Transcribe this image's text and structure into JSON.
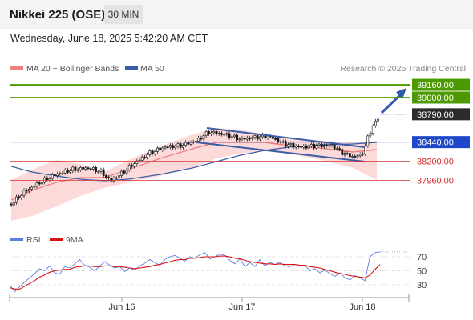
{
  "header": {
    "title": "Nikkei 225 (OSE)",
    "interval": "30 MIN",
    "datetime": "Wednesday, June 18, 2025 5:42:20 AM CET"
  },
  "legend": {
    "ma20": "MA 20 + Bollinger Bands",
    "ma50": "MA 50",
    "credit": "Research © 2025 Trading Central",
    "rsi": "RSI",
    "rsi_ma": "9MA"
  },
  "colors": {
    "ma20": "#f08080",
    "ma50": "#3a5da8",
    "band": "#fcd4d4",
    "resistance": "#4c9a00",
    "pivot": "#1f48c8",
    "support": "#d43030",
    "arrow": "#2f5aa8",
    "rsi": "#5b7fe0",
    "rsi_ma": "#dd1111"
  },
  "chart_data": [
    {
      "type": "candlestick",
      "title": "Nikkei 225 (OSE)",
      "x_ticks": [
        "Jun 16",
        "Jun 17",
        "Jun 18"
      ],
      "ylim": [
        37500,
        39300
      ],
      "series": [
        {
          "name": "MA 20 + Bollinger Bands"
        },
        {
          "name": "MA 50"
        }
      ],
      "levels": [
        {
          "value": "39160.00",
          "kind": "resistance"
        },
        {
          "value": "39000.00",
          "kind": "resistance"
        },
        {
          "value": "38790.00",
          "kind": "last"
        },
        {
          "value": "38440.00",
          "kind": "pivot"
        },
        {
          "value": "38200.00",
          "kind": "support"
        },
        {
          "value": "37960.00",
          "kind": "support"
        }
      ]
    },
    {
      "type": "line",
      "yticks": [
        30,
        50,
        70
      ],
      "ylim": [
        0,
        90
      ],
      "series": [
        {
          "name": "RSI",
          "values": [
            30,
            20,
            27,
            34,
            40,
            46,
            53,
            50,
            57,
            47,
            45,
            56,
            54,
            60,
            66,
            58,
            55,
            50,
            57,
            63,
            58,
            54,
            56,
            49,
            54,
            51,
            57,
            61,
            66,
            62,
            58,
            66,
            70,
            72,
            68,
            64,
            70,
            68,
            73,
            76,
            67,
            70,
            74,
            72,
            65,
            60,
            67,
            56,
            62,
            56,
            66,
            57,
            62,
            59,
            62,
            57,
            56,
            59,
            57,
            58,
            50,
            53,
            47,
            51,
            46,
            42,
            47,
            40,
            37,
            43,
            40,
            36,
            70,
            76,
            77
          ]
        },
        {
          "name": "9MA",
          "values": [
            26,
            24,
            24,
            28,
            32,
            36,
            41,
            44,
            48,
            50,
            51,
            52,
            52,
            55,
            56,
            57,
            57,
            56,
            56,
            57,
            57,
            56,
            56,
            55,
            54,
            53,
            54,
            55,
            56,
            58,
            59,
            61,
            63,
            65,
            66,
            66,
            68,
            68,
            69,
            70,
            70,
            70,
            71,
            71,
            70,
            68,
            67,
            65,
            63,
            62,
            61,
            60,
            60,
            59,
            60,
            59,
            59,
            59,
            58,
            58,
            56,
            55,
            54,
            52,
            50,
            48,
            46,
            45,
            43,
            42,
            41,
            40,
            44,
            52,
            59
          ]
        }
      ]
    }
  ]
}
